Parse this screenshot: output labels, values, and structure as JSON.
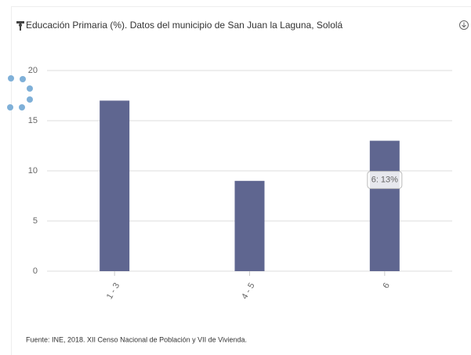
{
  "chart_data": {
    "type": "bar",
    "title": "Educación Primaria (%). Datos del municipio de San Juan la Laguna, Sololá",
    "categories": [
      "1 - 3",
      "4 - 5",
      "6"
    ],
    "values": [
      17,
      9,
      13
    ],
    "value_labels": [
      null,
      null,
      "6: 13%"
    ],
    "color": "#5f6690",
    "ylim": [
      0,
      20
    ],
    "yticks": [
      0,
      5,
      10,
      15,
      20
    ],
    "grid": true,
    "source": "Fuente: INE, 2018. XII Censo Nacional de Población y VII de Vivienda."
  }
}
